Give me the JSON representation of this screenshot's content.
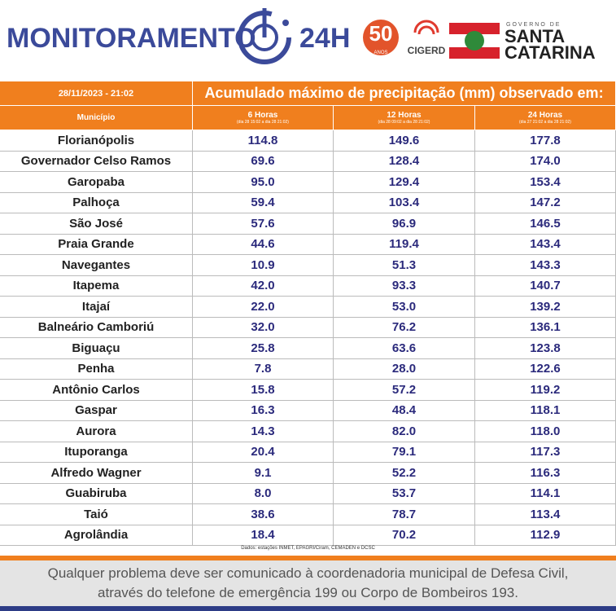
{
  "header": {
    "title": "MONITORAMENTO",
    "title_suffix": "24H",
    "logo_50": "50",
    "logo_50_sub": "ANOS",
    "logo_cigerd": "CIGERD",
    "gov_small": "GOVERNO DE",
    "gov_line1": "SANTA",
    "gov_line2": "CATARINA"
  },
  "table": {
    "date": "28/11/2023 - 21:02",
    "title": "Acumulado máximo de precipitação (mm) observado em:",
    "columns": [
      {
        "label": "Município"
      },
      {
        "label": "6 Horas",
        "period": "(dia 28 15:02 a dia 28 21:02)"
      },
      {
        "label": "12 Horas",
        "period": "(dia 28 09:02 a dia 28 21:02)"
      },
      {
        "label": "24 Horas",
        "period": "(dia 27 21:02 a dia 28 21:02)"
      }
    ],
    "rows": [
      [
        "Florianópolis",
        "114.8",
        "149.6",
        "177.8"
      ],
      [
        "Governador Celso Ramos",
        "69.6",
        "128.4",
        "174.0"
      ],
      [
        "Garopaba",
        "95.0",
        "129.4",
        "153.4"
      ],
      [
        "Palhoça",
        "59.4",
        "103.4",
        "147.2"
      ],
      [
        "São José",
        "57.6",
        "96.9",
        "146.5"
      ],
      [
        "Praia Grande",
        "44.6",
        "119.4",
        "143.4"
      ],
      [
        "Navegantes",
        "10.9",
        "51.3",
        "143.3"
      ],
      [
        "Itapema",
        "42.0",
        "93.3",
        "140.7"
      ],
      [
        "Itajaí",
        "22.0",
        "53.0",
        "139.2"
      ],
      [
        "Balneário Camboriú",
        "32.0",
        "76.2",
        "136.1"
      ],
      [
        "Biguaçu",
        "25.8",
        "63.6",
        "123.8"
      ],
      [
        "Penha",
        "7.8",
        "28.0",
        "122.6"
      ],
      [
        "Antônio Carlos",
        "15.8",
        "57.2",
        "119.2"
      ],
      [
        "Gaspar",
        "16.3",
        "48.4",
        "118.1"
      ],
      [
        "Aurora",
        "14.3",
        "82.0",
        "118.0"
      ],
      [
        "Ituporanga",
        "20.4",
        "79.1",
        "117.3"
      ],
      [
        "Alfredo Wagner",
        "9.1",
        "52.2",
        "116.3"
      ],
      [
        "Guabiruba",
        "8.0",
        "53.7",
        "114.1"
      ],
      [
        "Taió",
        "38.6",
        "78.7",
        "113.4"
      ],
      [
        "Agrolândia",
        "18.4",
        "70.2",
        "112.9"
      ]
    ]
  },
  "source": "Dados: estações INMET, EPAGRI/Ciram, CEMADEN e DCSC",
  "footer": [
    "Qualquer problema deve ser comunicado à coordenadoria municipal de Defesa Civil,",
    "através do telefone de emergência 199 ou Corpo de Bombeiros 193."
  ]
}
